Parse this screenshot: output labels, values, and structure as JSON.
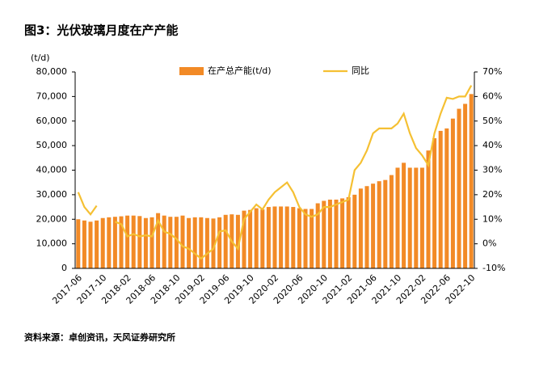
{
  "chart_data": {
    "type": "bar_line",
    "title": "图3：光伏玻璃月度在产产能",
    "y_label": "(t/d)",
    "source": "资料来源：卓创资讯，天风证券研究所",
    "categories": [
      "2017-06",
      null,
      null,
      null,
      "2017-10",
      null,
      null,
      null,
      "2018-02",
      null,
      null,
      null,
      "2018-06",
      null,
      null,
      null,
      "2018-10",
      null,
      null,
      null,
      "2019-02",
      null,
      null,
      null,
      "2019-06",
      null,
      null,
      null,
      "2019-10",
      null,
      null,
      null,
      "2020-02",
      null,
      null,
      null,
      "2020-06",
      null,
      null,
      null,
      "2020-10",
      null,
      null,
      null,
      "2021-02",
      null,
      null,
      null,
      "2021-06",
      null,
      null,
      null,
      "2021-10",
      null,
      null,
      null,
      "2022-02",
      null,
      null,
      null,
      "2022-06",
      null,
      null,
      null,
      "2022-10"
    ],
    "series": [
      {
        "name": "在产总产能(t/d)",
        "color": "#f28a26",
        "type": "bar",
        "values": [
          20000,
          19500,
          19000,
          19500,
          20500,
          20800,
          21000,
          21200,
          21500,
          21500,
          21300,
          20500,
          20800,
          22500,
          21500,
          21000,
          21000,
          21500,
          20500,
          20800,
          20800,
          20500,
          20300,
          20800,
          21800,
          22000,
          21800,
          23500,
          23800,
          24500,
          24000,
          25000,
          25200,
          25200,
          25200,
          25000,
          24500,
          24200,
          24200,
          26500,
          27500,
          28000,
          28000,
          28500,
          29000,
          30000,
          32500,
          33500,
          34500,
          35500,
          36000,
          38000,
          41000,
          43000,
          41000,
          41000,
          41000,
          48000,
          53000,
          56000,
          57000,
          61000,
          65000,
          67000,
          71000
        ]
      },
      {
        "name": "同比",
        "color": "#f5c033",
        "type": "line",
        "axis": "y2",
        "values": [
          21,
          15,
          12,
          15.5,
          null,
          null,
          9,
          8,
          3,
          4,
          3,
          3.5,
          3,
          9.5,
          5,
          4,
          2,
          -1,
          -2,
          -4,
          -6,
          -4,
          -2,
          5,
          5.5,
          1,
          -2,
          10,
          13,
          16,
          14,
          18,
          21,
          23,
          25,
          21,
          15,
          12,
          11,
          12,
          15,
          15,
          16,
          17,
          18,
          30,
          33,
          38,
          45,
          47,
          47,
          47,
          49,
          53,
          45,
          39,
          36,
          32,
          45,
          53,
          59.5,
          59,
          60,
          60,
          64.5
        ]
      }
    ],
    "ylim": [
      0,
      80000
    ],
    "yticks": [
      0,
      {
        "value": 10000,
        "label": "10,000"
      },
      {
        "value": 20000,
        "label": "20,000"
      },
      {
        "value": 30000,
        "label": "30,000"
      },
      {
        "value": 40000,
        "label": "40,000"
      },
      {
        "value": 50000,
        "label": "50,000"
      },
      {
        "value": 60000,
        "label": "60,000"
      },
      {
        "value": 70000,
        "label": "70,000"
      },
      {
        "value": 80000,
        "label": "80,000"
      }
    ],
    "y2lim": [
      -10,
      70
    ],
    "y2ticks": [
      {
        "value": -10,
        "label": "-10%"
      },
      {
        "value": 0,
        "label": "0%"
      },
      {
        "value": 10,
        "label": "10%"
      },
      {
        "value": 20,
        "label": "20%"
      },
      {
        "value": 30,
        "label": "30%"
      },
      {
        "value": 40,
        "label": "40%"
      },
      {
        "value": 50,
        "label": "50%"
      },
      {
        "value": 60,
        "label": "60%"
      },
      {
        "value": 70,
        "label": "70%"
      }
    ],
    "legend": "top"
  }
}
